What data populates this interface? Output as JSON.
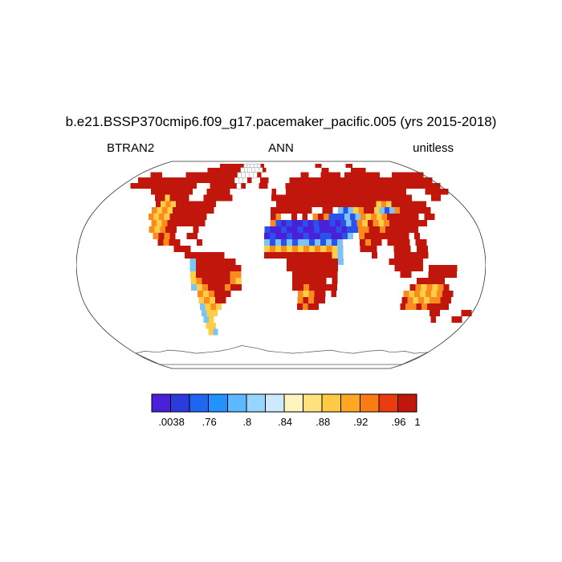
{
  "title": "b.e21.BSSP370cmip6.f09_g17.pacemaker_pacific.005 (yrs 2015-2018)",
  "header": {
    "variable": "BTRAN2",
    "season": "ANN",
    "units": "unitless"
  },
  "colorbar": {
    "colors": [
      "#4a20d8",
      "#2a3be0",
      "#1f66f5",
      "#2392ff",
      "#5cb8ff",
      "#97d5ff",
      "#cdeafc",
      "#fdf5bf",
      "#ffe27d",
      "#ffc845",
      "#ffa622",
      "#fb7d12",
      "#ea3c0c",
      "#c0160c"
    ],
    "tick_labels": [
      ".0038",
      ".76",
      ".8",
      ".84",
      ".88",
      ".92",
      ".96",
      "1"
    ],
    "tick_positions": [
      0.0714,
      0.2143,
      0.3571,
      0.5,
      0.6429,
      0.7857,
      0.9286,
      1.0
    ]
  },
  "chart_data": {
    "type": "heatmap",
    "projection": "robinson",
    "title": "b.e21.BSSP370cmip6.f09_g17.pacemaker_pacific.005 (yrs 2015-2018)",
    "variable": "BTRAN2",
    "aggregation": "ANN",
    "units": "unitless",
    "period": "yrs 2015-2018",
    "value_range": [
      0.0038,
      1
    ],
    "levels_labeled": [
      ".0038",
      ".76",
      ".8",
      ".84",
      ".88",
      ".92",
      ".96",
      "1"
    ],
    "palette": {
      "R": "#c0160c",
      "O": "#fb8b1e",
      "Y": "#ffce44",
      "C": "#7cc4f8",
      "B": "#2a50ee",
      "P": "#4a20d8",
      "W": "#ffffff"
    },
    "code_values": {
      "R": 0.99,
      "O": 0.91,
      "Y": 0.87,
      "C": 0.79,
      "B": 0.55,
      "P": 0.1,
      "W": null
    },
    "grid": {
      "lon_origin": -180,
      "lat_origin": 90,
      "cell_deg": 5,
      "rows": [
        [],
        [
          [
            18,
            "RRRRRR"
          ],
          [
            24,
            "RWWWWWR"
          ],
          [
            46,
            "RR"
          ],
          [
            55,
            "RR"
          ]
        ],
        [
          [
            16,
            "RRRRRRRRRWWWWWWR"
          ],
          [
            47,
            "RR"
          ],
          [
            55,
            "RRRR"
          ]
        ],
        [
          [
            3,
            "RRR"
          ],
          [
            12,
            "RRRRRRRRRRRRRWWWWWR"
          ],
          [
            41,
            "RR"
          ],
          [
            46,
            "RRRRR"
          ],
          [
            52,
            "RRRRRRRRR"
          ],
          [
            64,
            "RRRRRRRR"
          ]
        ],
        [
          [
            2,
            "RRRRRRRRRRRRRRRRRRRRRRRWWWR"
          ],
          [
            31,
            "RR"
          ],
          [
            38,
            "RRRRRRRRRRRRRRRRRRRRRRRRRRRRRRRRRR"
          ]
        ],
        [
          [
            2,
            "RRRRRRRRRRRRRRR"
          ],
          [
            20,
            "RRRRRRWR"
          ],
          [
            31,
            "RR"
          ],
          [
            37,
            "RRRRRRRRRRRRRRRRRRRRRRRRRRRRRRRRRRR"
          ]
        ],
        [
          [
            8,
            "RRRRRRRRR"
          ],
          [
            20,
            "RRRRR"
          ],
          [
            34,
            "R"
          ],
          [
            37,
            "RRRRRRRRRRRRRRRRRRRRRRRRRR"
          ],
          [
            67,
            "RRRRR"
          ]
        ],
        [
          [
            10,
            "RRYRRRR"
          ],
          [
            20,
            "RRRRRR"
          ],
          [
            34,
            "RRRRRRRRRRRRRRRRRRRRRRRRRRRRR"
          ],
          [
            67,
            "RR"
          ]
        ],
        [
          [
            11,
            "RYOYRRRRRRRR"
          ],
          [
            35,
            "RRRRRRRRRRRRRRRRRRRRYOYRRRRRRR"
          ]
        ],
        [
          [
            11,
            "OYOYRRRRRRRR"
          ],
          [
            34,
            "RRRRRRRR"
          ],
          [
            44,
            "RR"
          ],
          [
            47,
            "CBCYORRYCBCORRRR"
          ],
          [
            63,
            "RR"
          ]
        ],
        [
          [
            11,
            "OYOYRRRRRRR"
          ],
          [
            34,
            "RO"
          ],
          [
            38,
            "R"
          ],
          [
            40,
            "R"
          ],
          [
            42,
            "OROBBBCBCOYOYO"
          ],
          [
            56,
            "RRRRRR"
          ],
          [
            63,
            "RR"
          ]
        ],
        [
          [
            12,
            "OYORRRRRRR"
          ],
          [
            34,
            "OBPBPPBPBPPBPBCBOYROYO"
          ],
          [
            56,
            "RRRRRRR"
          ]
        ],
        [
          [
            12,
            "OYORR"
          ],
          [
            20,
            "R"
          ],
          [
            33,
            "BPPBPPBPPBPPPBPBBOORRORRRRRR"
          ]
        ],
        [
          [
            13,
            "OROR"
          ],
          [
            19,
            "RR"
          ],
          [
            33,
            "PBPPBPPBPPBBPPBC"
          ],
          [
            50,
            "ORRRRRRRR"
          ],
          [
            60,
            "R"
          ]
        ],
        [
          [
            14,
            "RORR"
          ],
          [
            21,
            "R"
          ],
          [
            33,
            "CBCBCBCCBCBCBC"
          ],
          [
            50,
            "RORR"
          ],
          [
            55,
            "RRRR"
          ],
          [
            60,
            "RR"
          ]
        ],
        [
          [
            17,
            "RRR"
          ],
          [
            33,
            "YOYOYOYOYOYOYC"
          ],
          [
            50,
            "RRR"
          ],
          [
            56,
            "RRR"
          ],
          [
            60,
            "RR"
          ]
        ],
        [
          [
            19,
            "RRRRRRR"
          ],
          [
            33,
            "RRRRRRRRRRRRYC"
          ],
          [
            52,
            "R"
          ],
          [
            56,
            "RRRRRR"
          ]
        ],
        [
          [
            20,
            "CRRRRRRR"
          ],
          [
            37,
            "RRRRRRRRRC"
          ],
          [
            55,
            "RRRRRR"
          ]
        ],
        [
          [
            20,
            "CRRRRRRRR"
          ],
          [
            37,
            "RRRRRRRRR"
          ],
          [
            56,
            "RRRRR"
          ],
          [
            62,
            "RRRRR"
          ]
        ],
        [
          [
            20,
            "YRRRRRROO"
          ],
          [
            38,
            "RRRRRRRR"
          ],
          [
            57,
            "RR"
          ],
          [
            62,
            "RRRRR"
          ]
        ],
        [
          [
            20,
            "YORRRRROY"
          ],
          [
            38,
            "RRRRRR"
          ],
          [
            45,
            "R"
          ],
          [
            60,
            "RRRRR"
          ]
        ],
        [
          [
            20,
            "CYORRRORR"
          ],
          [
            38,
            "RRORRRRR"
          ],
          [
            59,
            "ROYOYOR"
          ]
        ],
        [
          [
            21,
            "OYORRR"
          ],
          [
            39,
            "OYORR"
          ],
          [
            45,
            "R"
          ],
          [
            58,
            "OYOYOYORR"
          ]
        ],
        [
          [
            21,
            "YOYRR"
          ],
          [
            39,
            "ORORR"
          ],
          [
            58,
            "ROYOYOORR"
          ]
        ],
        [
          [
            21,
            "CYOY"
          ],
          [
            39,
            "RORR"
          ],
          [
            58,
            "ROORORRRR"
          ]
        ],
        [
          [
            21,
            "CYY"
          ],
          [
            64,
            "RR"
          ],
          [
            70,
            "RR"
          ]
        ],
        [
          [
            21,
            "CY"
          ],
          [
            65,
            "R"
          ],
          [
            69,
            "RR"
          ]
        ],
        [
          [
            21,
            "YY"
          ]
        ],
        [
          [
            21,
            "YC"
          ]
        ],
        []
      ]
    }
  }
}
